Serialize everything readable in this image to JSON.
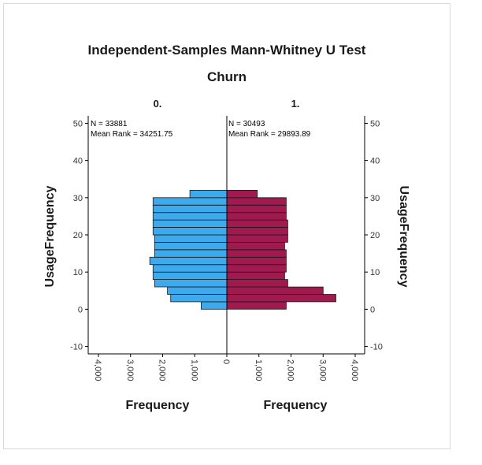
{
  "chart_data": {
    "type": "population-pyramid",
    "title": "Independent-Samples Mann-Whitney U Test",
    "subtitle": "Churn",
    "ylabel": "UsageFrequency",
    "xlabel_left": "Frequency",
    "xlabel_right": "Frequency",
    "ylim": [
      -12,
      52
    ],
    "y_ticks": [
      "50",
      "40",
      "30",
      "20",
      "10",
      "0",
      "-10"
    ],
    "x_ticks_left": [
      "4,000",
      "3,000",
      "2,000",
      "1,000",
      "0"
    ],
    "x_ticks_right": [
      "1,000",
      "2,000",
      "3,000",
      "4,000"
    ],
    "xlim": [
      0,
      4000
    ],
    "groups": [
      {
        "name": "0.",
        "n_label": "N = 33881",
        "mean_rank_label": "Mean Rank = 34251.75",
        "color": "#3eaaee",
        "bins": [
          {
            "y": 1,
            "value": 800
          },
          {
            "y": 3,
            "value": 1750
          },
          {
            "y": 5,
            "value": 1850
          },
          {
            "y": 7,
            "value": 2250
          },
          {
            "y": 9,
            "value": 2300
          },
          {
            "y": 11,
            "value": 2300
          },
          {
            "y": 13,
            "value": 2400
          },
          {
            "y": 15,
            "value": 2250
          },
          {
            "y": 17,
            "value": 2250
          },
          {
            "y": 19,
            "value": 2250
          },
          {
            "y": 21,
            "value": 2300
          },
          {
            "y": 23,
            "value": 2300
          },
          {
            "y": 25,
            "value": 2300
          },
          {
            "y": 27,
            "value": 2300
          },
          {
            "y": 29,
            "value": 2300
          },
          {
            "y": 31,
            "value": 1150
          }
        ]
      },
      {
        "name": "1.",
        "n_label": "N = 30493",
        "mean_rank_label": "Mean Rank = 29893.89",
        "color": "#a0194f",
        "bins": [
          {
            "y": 1,
            "value": 1850
          },
          {
            "y": 3,
            "value": 3400
          },
          {
            "y": 5,
            "value": 3000
          },
          {
            "y": 7,
            "value": 1900
          },
          {
            "y": 9,
            "value": 1800
          },
          {
            "y": 11,
            "value": 1850
          },
          {
            "y": 13,
            "value": 1850
          },
          {
            "y": 15,
            "value": 1850
          },
          {
            "y": 17,
            "value": 1800
          },
          {
            "y": 19,
            "value": 1900
          },
          {
            "y": 21,
            "value": 1900
          },
          {
            "y": 23,
            "value": 1900
          },
          {
            "y": 25,
            "value": 1850
          },
          {
            "y": 27,
            "value": 1850
          },
          {
            "y": 29,
            "value": 1850
          },
          {
            "y": 31,
            "value": 950
          }
        ]
      }
    ]
  }
}
